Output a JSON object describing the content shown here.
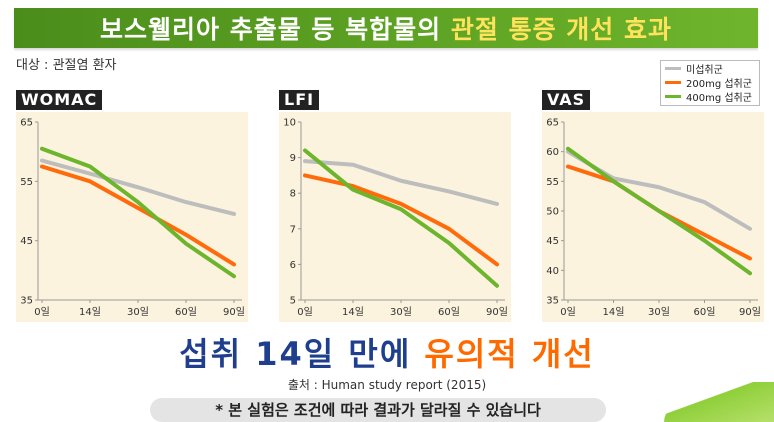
{
  "banner": {
    "title_part1": "보스웰리아 추출물 등 복합물의",
    "title_part2": "관절 통증 개선 효과"
  },
  "subject": "대상 : 관절염 환자",
  "legend": [
    {
      "label": "미섭취군",
      "color": "#bdbdbd"
    },
    {
      "label": "200mg 섭취군",
      "color": "#ff6a0a"
    },
    {
      "label": "400mg 섭취군",
      "color": "#6cb52c"
    }
  ],
  "chart_data": [
    {
      "type": "line",
      "title": "WOMAC",
      "x": [
        "0일",
        "14일",
        "30일",
        "60일",
        "90일"
      ],
      "yticks": [
        35,
        45,
        55,
        65
      ],
      "ylim": [
        35,
        65
      ],
      "series": [
        {
          "name": "미섭취군",
          "color": "#bdbdbd",
          "values": [
            58.5,
            56.3,
            54.0,
            51.5,
            49.5
          ]
        },
        {
          "name": "200mg 섭취군",
          "color": "#ff6a0a",
          "values": [
            57.5,
            55.0,
            50.5,
            46.0,
            41.0
          ]
        },
        {
          "name": "400mg 섭취군",
          "color": "#6cb52c",
          "values": [
            60.5,
            57.5,
            51.5,
            44.5,
            39.0
          ]
        }
      ]
    },
    {
      "type": "line",
      "title": "LFI",
      "x": [
        "0일",
        "14일",
        "30일",
        "60일",
        "90일"
      ],
      "yticks": [
        5,
        6,
        7,
        8,
        9,
        10
      ],
      "ylim": [
        5,
        10
      ],
      "series": [
        {
          "name": "미섭취군",
          "color": "#bdbdbd",
          "values": [
            8.9,
            8.8,
            8.35,
            8.05,
            7.7
          ]
        },
        {
          "name": "200mg 섭취군",
          "color": "#ff6a0a",
          "values": [
            8.5,
            8.2,
            7.7,
            7.0,
            6.0
          ]
        },
        {
          "name": "400mg 섭취군",
          "color": "#6cb52c",
          "values": [
            9.2,
            8.1,
            7.55,
            6.6,
            5.4
          ]
        }
      ]
    },
    {
      "type": "line",
      "title": "VAS",
      "x": [
        "0일",
        "14일",
        "30일",
        "60일",
        "90일"
      ],
      "yticks": [
        35,
        40,
        45,
        50,
        55,
        60,
        65
      ],
      "ylim": [
        35,
        65
      ],
      "series": [
        {
          "name": "미섭취군",
          "color": "#bdbdbd",
          "values": [
            60.0,
            55.5,
            54.0,
            51.5,
            47.0
          ]
        },
        {
          "name": "200mg 섭취군",
          "color": "#ff6a0a",
          "values": [
            57.5,
            55.0,
            50.0,
            46.0,
            42.0
          ]
        },
        {
          "name": "400mg 섭취군",
          "color": "#6cb52c",
          "values": [
            60.5,
            55.0,
            50.0,
            45.0,
            39.5
          ]
        }
      ]
    }
  ],
  "headline": {
    "part1": "섭취 14일 만에",
    "part2": "유의적 개선"
  },
  "source": "출처 : Human study report (2015)",
  "note": "* 본 실험은 조건에 따라 결과가 달라질 수 있습니다"
}
